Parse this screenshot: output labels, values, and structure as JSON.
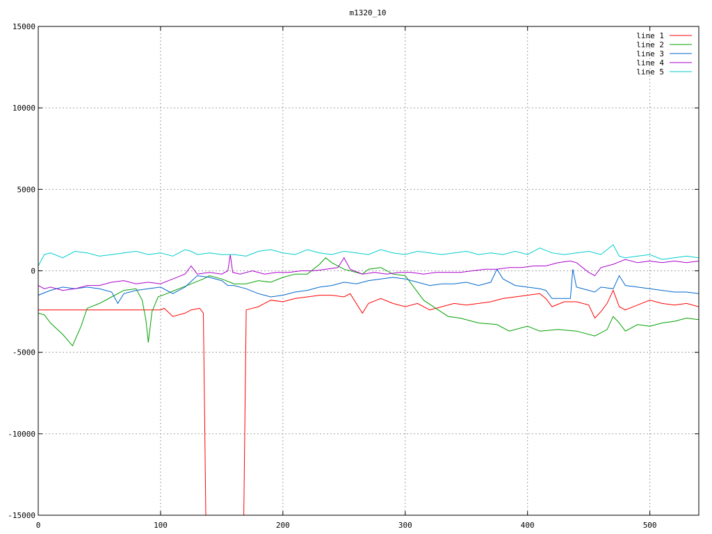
{
  "chart_data": {
    "type": "line",
    "title": "m1320_10",
    "xlabel": "",
    "ylabel": "",
    "xlim": [
      0,
      540
    ],
    "ylim": [
      -15000,
      15000
    ],
    "x_ticks": [
      0,
      100,
      200,
      300,
      400,
      500
    ],
    "y_ticks": [
      -15000,
      -10000,
      -5000,
      0,
      5000,
      10000,
      15000
    ],
    "grid": true,
    "legend_position": "top-right",
    "series": [
      {
        "name": "line 1",
        "color": "#ff0000",
        "points": [
          [
            0,
            -2400
          ],
          [
            50,
            -2400
          ],
          [
            100,
            -2400
          ],
          [
            103,
            -2300
          ],
          [
            110,
            -2800
          ],
          [
            120,
            -2600
          ],
          [
            125,
            -2400
          ],
          [
            132,
            -2300
          ],
          [
            135,
            -2600
          ],
          [
            137,
            -15000
          ],
          [
            168,
            -15000
          ],
          [
            170,
            -2400
          ],
          [
            180,
            -2200
          ],
          [
            190,
            -1800
          ],
          [
            200,
            -1900
          ],
          [
            210,
            -1700
          ],
          [
            220,
            -1600
          ],
          [
            230,
            -1500
          ],
          [
            240,
            -1500
          ],
          [
            250,
            -1600
          ],
          [
            255,
            -1400
          ],
          [
            265,
            -2600
          ],
          [
            270,
            -2000
          ],
          [
            280,
            -1700
          ],
          [
            290,
            -2000
          ],
          [
            300,
            -2200
          ],
          [
            310,
            -2000
          ],
          [
            320,
            -2400
          ],
          [
            330,
            -2200
          ],
          [
            340,
            -2000
          ],
          [
            350,
            -2100
          ],
          [
            360,
            -2000
          ],
          [
            370,
            -1900
          ],
          [
            380,
            -1700
          ],
          [
            390,
            -1600
          ],
          [
            400,
            -1500
          ],
          [
            410,
            -1400
          ],
          [
            415,
            -1700
          ],
          [
            420,
            -2200
          ],
          [
            430,
            -1900
          ],
          [
            440,
            -1900
          ],
          [
            450,
            -2100
          ],
          [
            455,
            -2900
          ],
          [
            460,
            -2500
          ],
          [
            465,
            -2000
          ],
          [
            470,
            -1200
          ],
          [
            475,
            -2200
          ],
          [
            480,
            -2400
          ],
          [
            490,
            -2100
          ],
          [
            500,
            -1800
          ],
          [
            510,
            -2000
          ],
          [
            520,
            -2100
          ],
          [
            530,
            -2000
          ],
          [
            540,
            -2200
          ]
        ]
      },
      {
        "name": "line 2",
        "color": "#00a000",
        "points": [
          [
            0,
            -2600
          ],
          [
            5,
            -2700
          ],
          [
            10,
            -3200
          ],
          [
            20,
            -3900
          ],
          [
            28,
            -4600
          ],
          [
            35,
            -3400
          ],
          [
            40,
            -2300
          ],
          [
            50,
            -2000
          ],
          [
            60,
            -1600
          ],
          [
            70,
            -1200
          ],
          [
            80,
            -1100
          ],
          [
            85,
            -1800
          ],
          [
            88,
            -3000
          ],
          [
            90,
            -4400
          ],
          [
            93,
            -2500
          ],
          [
            98,
            -1600
          ],
          [
            105,
            -1400
          ],
          [
            115,
            -1100
          ],
          [
            125,
            -800
          ],
          [
            135,
            -500
          ],
          [
            140,
            -300
          ],
          [
            150,
            -500
          ],
          [
            160,
            -800
          ],
          [
            170,
            -800
          ],
          [
            180,
            -600
          ],
          [
            190,
            -700
          ],
          [
            200,
            -400
          ],
          [
            210,
            -200
          ],
          [
            220,
            -200
          ],
          [
            230,
            400
          ],
          [
            235,
            800
          ],
          [
            240,
            500
          ],
          [
            250,
            100
          ],
          [
            260,
            -100
          ],
          [
            265,
            -200
          ],
          [
            270,
            100
          ],
          [
            280,
            200
          ],
          [
            290,
            -200
          ],
          [
            300,
            -300
          ],
          [
            305,
            -800
          ],
          [
            315,
            -1800
          ],
          [
            325,
            -2300
          ],
          [
            335,
            -2800
          ],
          [
            345,
            -2900
          ],
          [
            360,
            -3200
          ],
          [
            375,
            -3300
          ],
          [
            385,
            -3700
          ],
          [
            400,
            -3400
          ],
          [
            410,
            -3700
          ],
          [
            425,
            -3600
          ],
          [
            440,
            -3700
          ],
          [
            455,
            -4000
          ],
          [
            465,
            -3600
          ],
          [
            470,
            -2800
          ],
          [
            475,
            -3200
          ],
          [
            480,
            -3700
          ],
          [
            490,
            -3300
          ],
          [
            500,
            -3400
          ],
          [
            510,
            -3200
          ],
          [
            520,
            -3100
          ],
          [
            530,
            -2900
          ],
          [
            540,
            -3000
          ]
        ]
      },
      {
        "name": "line 3",
        "color": "#0066cc",
        "points": [
          [
            0,
            -1500
          ],
          [
            10,
            -1200
          ],
          [
            20,
            -1000
          ],
          [
            30,
            -1100
          ],
          [
            40,
            -1000
          ],
          [
            50,
            -1100
          ],
          [
            60,
            -1300
          ],
          [
            65,
            -2000
          ],
          [
            70,
            -1400
          ],
          [
            80,
            -1200
          ],
          [
            90,
            -1100
          ],
          [
            100,
            -1000
          ],
          [
            110,
            -1400
          ],
          [
            120,
            -1000
          ],
          [
            130,
            -300
          ],
          [
            140,
            -400
          ],
          [
            150,
            -600
          ],
          [
            155,
            -900
          ],
          [
            160,
            -900
          ],
          [
            170,
            -1100
          ],
          [
            180,
            -1400
          ],
          [
            190,
            -1600
          ],
          [
            200,
            -1500
          ],
          [
            210,
            -1300
          ],
          [
            220,
            -1200
          ],
          [
            230,
            -1000
          ],
          [
            240,
            -900
          ],
          [
            250,
            -700
          ],
          [
            260,
            -800
          ],
          [
            270,
            -600
          ],
          [
            280,
            -500
          ],
          [
            290,
            -400
          ],
          [
            300,
            -500
          ],
          [
            310,
            -700
          ],
          [
            320,
            -900
          ],
          [
            330,
            -800
          ],
          [
            340,
            -800
          ],
          [
            350,
            -700
          ],
          [
            360,
            -900
          ],
          [
            370,
            -700
          ],
          [
            375,
            100
          ],
          [
            380,
            -500
          ],
          [
            390,
            -900
          ],
          [
            400,
            -1000
          ],
          [
            410,
            -1100
          ],
          [
            415,
            -1200
          ],
          [
            420,
            -1700
          ],
          [
            435,
            -1700
          ],
          [
            437,
            100
          ],
          [
            440,
            -1000
          ],
          [
            450,
            -1200
          ],
          [
            455,
            -1300
          ],
          [
            460,
            -1000
          ],
          [
            470,
            -1100
          ],
          [
            475,
            -300
          ],
          [
            480,
            -900
          ],
          [
            490,
            -1000
          ],
          [
            500,
            -1100
          ],
          [
            510,
            -1200
          ],
          [
            520,
            -1300
          ],
          [
            530,
            -1300
          ],
          [
            540,
            -1400
          ]
        ]
      },
      {
        "name": "line 4",
        "color": "#aa00cc",
        "points": [
          [
            0,
            -900
          ],
          [
            5,
            -1100
          ],
          [
            10,
            -1000
          ],
          [
            20,
            -1200
          ],
          [
            30,
            -1100
          ],
          [
            40,
            -900
          ],
          [
            50,
            -900
          ],
          [
            60,
            -700
          ],
          [
            70,
            -600
          ],
          [
            80,
            -800
          ],
          [
            90,
            -700
          ],
          [
            100,
            -800
          ],
          [
            110,
            -500
          ],
          [
            120,
            -200
          ],
          [
            125,
            300
          ],
          [
            130,
            -200
          ],
          [
            140,
            -100
          ],
          [
            150,
            -200
          ],
          [
            155,
            0
          ],
          [
            157,
            1000
          ],
          [
            159,
            -100
          ],
          [
            165,
            -200
          ],
          [
            175,
            0
          ],
          [
            185,
            -200
          ],
          [
            195,
            -100
          ],
          [
            205,
            -100
          ],
          [
            215,
            0
          ],
          [
            225,
            0
          ],
          [
            235,
            100
          ],
          [
            245,
            200
          ],
          [
            250,
            800
          ],
          [
            255,
            100
          ],
          [
            265,
            -200
          ],
          [
            275,
            -100
          ],
          [
            285,
            -200
          ],
          [
            295,
            -100
          ],
          [
            305,
            -100
          ],
          [
            315,
            -200
          ],
          [
            325,
            -100
          ],
          [
            335,
            -100
          ],
          [
            345,
            -100
          ],
          [
            355,
            0
          ],
          [
            365,
            100
          ],
          [
            375,
            100
          ],
          [
            385,
            200
          ],
          [
            395,
            200
          ],
          [
            405,
            300
          ],
          [
            415,
            300
          ],
          [
            425,
            500
          ],
          [
            435,
            600
          ],
          [
            440,
            500
          ],
          [
            445,
            200
          ],
          [
            450,
            -100
          ],
          [
            455,
            -300
          ],
          [
            460,
            200
          ],
          [
            465,
            300
          ],
          [
            470,
            400
          ],
          [
            480,
            700
          ],
          [
            490,
            500
          ],
          [
            500,
            600
          ],
          [
            510,
            500
          ],
          [
            520,
            600
          ],
          [
            530,
            500
          ],
          [
            540,
            600
          ]
        ]
      },
      {
        "name": "line 5",
        "color": "#00cccc",
        "points": [
          [
            0,
            300
          ],
          [
            5,
            1000
          ],
          [
            10,
            1100
          ],
          [
            20,
            800
          ],
          [
            30,
            1200
          ],
          [
            40,
            1100
          ],
          [
            50,
            900
          ],
          [
            60,
            1000
          ],
          [
            70,
            1100
          ],
          [
            80,
            1200
          ],
          [
            90,
            1000
          ],
          [
            100,
            1100
          ],
          [
            110,
            900
          ],
          [
            120,
            1300
          ],
          [
            125,
            1200
          ],
          [
            130,
            1000
          ],
          [
            140,
            1100
          ],
          [
            150,
            1000
          ],
          [
            160,
            1000
          ],
          [
            170,
            900
          ],
          [
            180,
            1200
          ],
          [
            190,
            1300
          ],
          [
            200,
            1100
          ],
          [
            210,
            1000
          ],
          [
            220,
            1300
          ],
          [
            230,
            1100
          ],
          [
            240,
            1000
          ],
          [
            250,
            1200
          ],
          [
            260,
            1100
          ],
          [
            270,
            1000
          ],
          [
            280,
            1300
          ],
          [
            290,
            1100
          ],
          [
            300,
            1000
          ],
          [
            310,
            1200
          ],
          [
            320,
            1100
          ],
          [
            330,
            1000
          ],
          [
            340,
            1100
          ],
          [
            350,
            1200
          ],
          [
            360,
            1000
          ],
          [
            370,
            1100
          ],
          [
            380,
            1000
          ],
          [
            390,
            1200
          ],
          [
            400,
            1000
          ],
          [
            410,
            1400
          ],
          [
            420,
            1100
          ],
          [
            430,
            1000
          ],
          [
            440,
            1100
          ],
          [
            450,
            1200
          ],
          [
            460,
            1000
          ],
          [
            470,
            1600
          ],
          [
            475,
            900
          ],
          [
            480,
            800
          ],
          [
            490,
            900
          ],
          [
            500,
            1000
          ],
          [
            510,
            700
          ],
          [
            520,
            800
          ],
          [
            530,
            900
          ],
          [
            540,
            800
          ]
        ]
      }
    ]
  }
}
